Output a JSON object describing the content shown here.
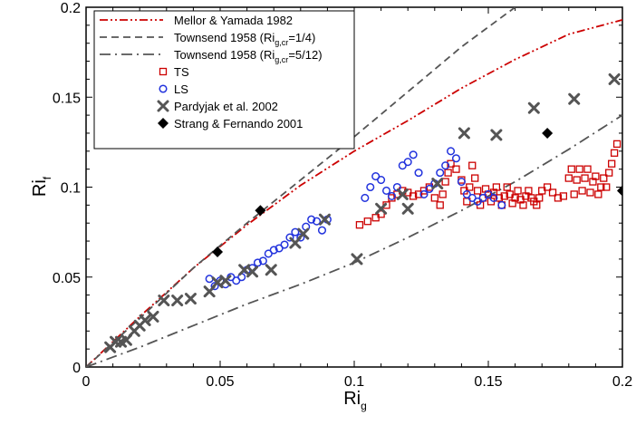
{
  "chart_data": {
    "type": "scatter",
    "xlabel": "Ri",
    "xlabel_sub": "g",
    "ylabel": "Ri",
    "ylabel_sub": "f",
    "xlim": [
      0,
      0.2
    ],
    "ylim": [
      0,
      0.2
    ],
    "x_ticks": [
      "0",
      "0.05",
      "0.1",
      "0.15",
      "0.2"
    ],
    "y_ticks": [
      "0",
      "0.05",
      "0.1",
      "0.15",
      "0.2"
    ],
    "grid": false,
    "legend_position": "top-left",
    "series": [
      {
        "name": "Mellor & Yamada 1982",
        "kind": "line",
        "style": "dash-dot-dot",
        "color": "#cc0000",
        "x": [
          0,
          0.02,
          0.04,
          0.06,
          0.08,
          0.1,
          0.12,
          0.14,
          0.16,
          0.18,
          0.2
        ],
        "y": [
          0,
          0.028,
          0.055,
          0.079,
          0.101,
          0.12,
          0.137,
          0.155,
          0.171,
          0.185,
          0.193
        ]
      },
      {
        "name_parts": [
          "Townsend 1958 (Ri",
          "g,cr",
          "=1/4)"
        ],
        "kind": "line",
        "style": "dash",
        "color": "#555555",
        "x": [
          0,
          0.02,
          0.04,
          0.06,
          0.08,
          0.1,
          0.12,
          0.14,
          0.16
        ],
        "y": [
          0,
          0.027,
          0.055,
          0.08,
          0.104,
          0.128,
          0.153,
          0.178,
          0.2
        ]
      },
      {
        "name_parts": [
          "Townsend 1958 (Ri",
          "g,cr",
          "=5/12)"
        ],
        "kind": "line",
        "style": "dash-dot",
        "color": "#555555",
        "x": [
          0,
          0.02,
          0.04,
          0.06,
          0.08,
          0.1,
          0.12,
          0.14,
          0.16,
          0.18,
          0.2
        ],
        "y": [
          0,
          0.011,
          0.023,
          0.035,
          0.046,
          0.058,
          0.072,
          0.087,
          0.103,
          0.121,
          0.14
        ]
      },
      {
        "name": "TS",
        "kind": "marker",
        "marker": "square",
        "color": "#cc0000",
        "x": [
          0.102,
          0.105,
          0.108,
          0.11,
          0.112,
          0.114,
          0.116,
          0.118,
          0.12,
          0.122,
          0.124,
          0.126,
          0.128,
          0.13,
          0.132,
          0.133,
          0.134,
          0.135,
          0.136,
          0.138,
          0.14,
          0.141,
          0.142,
          0.143,
          0.144,
          0.145,
          0.146,
          0.147,
          0.148,
          0.149,
          0.15,
          0.151,
          0.152,
          0.153,
          0.154,
          0.155,
          0.156,
          0.157,
          0.158,
          0.159,
          0.16,
          0.161,
          0.162,
          0.163,
          0.164,
          0.165,
          0.166,
          0.167,
          0.168,
          0.169,
          0.17,
          0.172,
          0.174,
          0.176,
          0.178,
          0.18,
          0.181,
          0.182,
          0.183,
          0.184,
          0.185,
          0.186,
          0.187,
          0.188,
          0.189,
          0.19,
          0.191,
          0.192,
          0.193,
          0.194,
          0.195,
          0.196,
          0.197,
          0.198
        ],
        "y": [
          0.079,
          0.081,
          0.083,
          0.085,
          0.09,
          0.094,
          0.096,
          0.098,
          0.097,
          0.095,
          0.096,
          0.098,
          0.1,
          0.094,
          0.09,
          0.096,
          0.103,
          0.108,
          0.113,
          0.11,
          0.104,
          0.098,
          0.092,
          0.1,
          0.112,
          0.105,
          0.098,
          0.09,
          0.094,
          0.099,
          0.096,
          0.092,
          0.097,
          0.1,
          0.094,
          0.09,
          0.095,
          0.1,
          0.096,
          0.091,
          0.094,
          0.098,
          0.093,
          0.09,
          0.095,
          0.098,
          0.094,
          0.092,
          0.09,
          0.094,
          0.098,
          0.1,
          0.097,
          0.094,
          0.095,
          0.105,
          0.11,
          0.096,
          0.104,
          0.11,
          0.098,
          0.105,
          0.11,
          0.097,
          0.103,
          0.106,
          0.096,
          0.1,
          0.105,
          0.1,
          0.108,
          0.113,
          0.119,
          0.124
        ]
      },
      {
        "name": "LS",
        "kind": "marker",
        "marker": "circle",
        "color": "#2233dd",
        "x": [
          0.046,
          0.048,
          0.05,
          0.052,
          0.054,
          0.056,
          0.058,
          0.06,
          0.062,
          0.064,
          0.066,
          0.068,
          0.07,
          0.072,
          0.074,
          0.076,
          0.078,
          0.08,
          0.082,
          0.084,
          0.086,
          0.088,
          0.09,
          0.104,
          0.106,
          0.108,
          0.11,
          0.112,
          0.114,
          0.116,
          0.118,
          0.12,
          0.122,
          0.124,
          0.126,
          0.128,
          0.13,
          0.132,
          0.134,
          0.136,
          0.138,
          0.14,
          0.142,
          0.144,
          0.146,
          0.148,
          0.15,
          0.152,
          0.155
        ],
        "y": [
          0.049,
          0.045,
          0.048,
          0.046,
          0.05,
          0.048,
          0.05,
          0.054,
          0.055,
          0.058,
          0.059,
          0.063,
          0.065,
          0.066,
          0.068,
          0.072,
          0.075,
          0.072,
          0.078,
          0.082,
          0.081,
          0.076,
          0.082,
          0.094,
          0.1,
          0.106,
          0.104,
          0.098,
          0.095,
          0.1,
          0.112,
          0.114,
          0.118,
          0.108,
          0.096,
          0.099,
          0.102,
          0.108,
          0.112,
          0.12,
          0.116,
          0.103,
          0.096,
          0.094,
          0.092,
          0.094,
          0.096,
          0.094,
          0.09
        ]
      },
      {
        "name": "Pardyjak et al. 2002",
        "kind": "marker",
        "marker": "x",
        "color": "#555555",
        "x": [
          0.009,
          0.011,
          0.013,
          0.015,
          0.018,
          0.02,
          0.022,
          0.025,
          0.029,
          0.034,
          0.039,
          0.046,
          0.049,
          0.052,
          0.059,
          0.062,
          0.069,
          0.078,
          0.081,
          0.089,
          0.101,
          0.11,
          0.118,
          0.12,
          0.131,
          0.141,
          0.153,
          0.167,
          0.182,
          0.197
        ],
        "y": [
          0.011,
          0.014,
          0.014,
          0.015,
          0.02,
          0.023,
          0.026,
          0.028,
          0.037,
          0.037,
          0.038,
          0.042,
          0.047,
          0.048,
          0.054,
          0.053,
          0.054,
          0.069,
          0.074,
          0.082,
          0.06,
          0.088,
          0.096,
          0.088,
          0.102,
          0.13,
          0.129,
          0.144,
          0.149,
          0.16
        ]
      },
      {
        "name": "Strang & Fernando 2001",
        "kind": "marker",
        "marker": "diamond",
        "color": "#000000",
        "x": [
          0.049,
          0.065,
          0.172,
          0.2
        ],
        "y": [
          0.064,
          0.087,
          0.13,
          0.098
        ]
      }
    ]
  }
}
